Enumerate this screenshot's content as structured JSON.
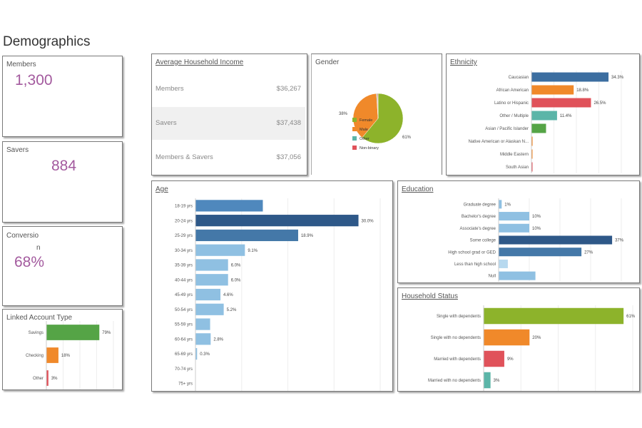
{
  "page_title": "Demographics",
  "kpis": {
    "members_label": "Members",
    "members_value": "1,300",
    "savers_label": "Savers",
    "savers_value": "884",
    "conversion_label": "Conversio",
    "conversion_label_wrap": "n",
    "conversion_value": "68%"
  },
  "income": {
    "title": "Average Household Income",
    "rows": [
      {
        "label": "Members",
        "value": "$36,267"
      },
      {
        "label": "Savers",
        "value": "$37,438"
      },
      {
        "label": "Members & Savers",
        "value": "$37,056"
      }
    ]
  },
  "colors": {
    "green": "#8db32b",
    "orange": "#f0892a",
    "teal": "#5bb5a8",
    "red": "#e0525a",
    "blue_dark": "#2e5888",
    "blue_mid": "#4478a8",
    "blue_light": "#8fc0e2",
    "navy": "#3c6ea0",
    "ethnic_green": "#55a446"
  },
  "chart_data": [
    {
      "id": "gender",
      "type": "pie",
      "title": "Gender",
      "slices": [
        {
          "label": "Female",
          "value": 61,
          "color": "#8db32b"
        },
        {
          "label": "Male",
          "value": 38,
          "color": "#f0892a"
        },
        {
          "label": "Other",
          "value": 0.5,
          "color": "#5bb5a8"
        },
        {
          "label": "Non-binary",
          "value": 0.5,
          "color": "#e0525a"
        }
      ],
      "data_labels": [
        "61%",
        "38%"
      ]
    },
    {
      "id": "ethnicity",
      "type": "bar",
      "orientation": "horizontal",
      "title": "Ethnicity",
      "categories": [
        "Caucasian",
        "African American",
        "Latino or Hispanic",
        "Other / Multiple",
        "Asian / Pacific Islander",
        "Native American or Alaskan N...",
        "Middle Eastern",
        "South Asian"
      ],
      "values": [
        34.3,
        18.8,
        26.5,
        11.4,
        6.5,
        0.5,
        0.3,
        0.3
      ],
      "data_labels": [
        "34.3%",
        "18.8%",
        "26.5%",
        "11.4%",
        "",
        "",
        "",
        ""
      ],
      "colors": [
        "#3c6ea0",
        "#f0892a",
        "#e0525a",
        "#5bb5a8",
        "#55a446",
        "#f0892a",
        "#f0892a",
        "#e0525a"
      ],
      "xlim": [
        0,
        40
      ]
    },
    {
      "id": "age",
      "type": "bar",
      "orientation": "horizontal",
      "title": "Age",
      "categories": [
        "18-19 yrs",
        "20-24 yrs",
        "25-29 yrs",
        "30-34 yrs",
        "35-39 yrs",
        "40-44 yrs",
        "45-49 yrs",
        "50-54 yrs",
        "55-59 yrs",
        "60-64 yrs",
        "65-69 yrs",
        "70-74 yrs",
        "75+ yrs"
      ],
      "values": [
        12.4,
        30.0,
        18.9,
        9.1,
        6.0,
        6.0,
        4.6,
        5.2,
        2.7,
        2.8,
        0.3,
        0,
        0
      ],
      "data_labels": [
        "",
        "30.0%",
        "18.9%",
        "9.1%",
        "6.0%",
        "6.0%",
        "4.6%",
        "5.2%",
        "",
        "2.8%",
        "0.3%",
        "",
        ""
      ],
      "colors": [
        "#4f88bd",
        "#2e5888",
        "#4478a8",
        "#8fc0e2",
        "#8fc0e2",
        "#8fc0e2",
        "#8fc0e2",
        "#8fc0e2",
        "#8fc0e2",
        "#8fc0e2",
        "#8fc0e2",
        "#8fc0e2",
        "#8fc0e2"
      ],
      "xlim": [
        0,
        34
      ]
    },
    {
      "id": "education",
      "type": "bar",
      "orientation": "horizontal",
      "title": "Education",
      "categories": [
        "Graduate degree",
        "Bachelor's degree",
        "Associate's degree",
        "Some college",
        "High school grad or GED",
        "Less than high school",
        "Null"
      ],
      "values": [
        1,
        10,
        10,
        37,
        27,
        3,
        12
      ],
      "data_labels": [
        "1%",
        "10%",
        "10%",
        "37%",
        "27%",
        "",
        ""
      ],
      "colors": [
        "#8fc0e2",
        "#8fc0e2",
        "#8fc0e2",
        "#2e5888",
        "#4478a8",
        "#b7d9ef",
        "#8fc0e2"
      ],
      "xlim": [
        0,
        40
      ]
    },
    {
      "id": "household",
      "type": "bar",
      "orientation": "horizontal",
      "title": "Household Status",
      "categories": [
        "Single with dependents",
        "Single with no dependents",
        "Married with dependents",
        "Married with no dependents"
      ],
      "values": [
        61,
        20,
        9,
        3
      ],
      "data_labels": [
        "61%",
        "20%",
        "9%",
        "3%"
      ],
      "colors": [
        "#8db32b",
        "#f0892a",
        "#e0525a",
        "#5bb5a8"
      ],
      "xlim": [
        0,
        65
      ]
    },
    {
      "id": "linked",
      "type": "bar",
      "orientation": "horizontal",
      "title": "Linked Account Type",
      "categories": [
        "Savings",
        "Checking",
        "Other"
      ],
      "values": [
        79,
        18,
        3
      ],
      "data_labels": [
        "79%",
        "18%",
        "3%"
      ],
      "colors": [
        "#55a446",
        "#f0892a",
        "#e0525a"
      ],
      "xlim": [
        0,
        100
      ]
    }
  ]
}
